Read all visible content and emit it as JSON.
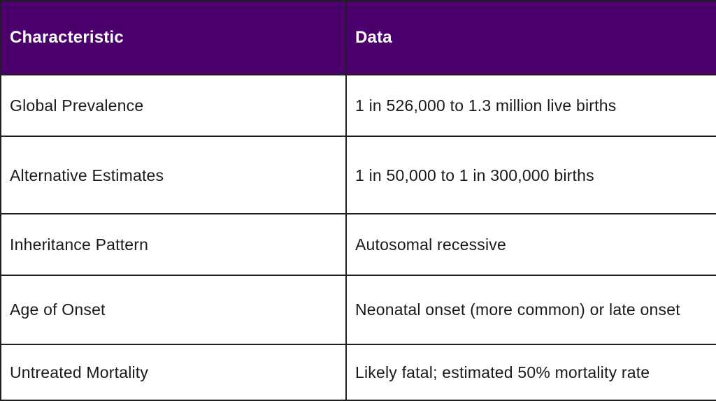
{
  "table": {
    "headers": [
      "Characteristic",
      "Data"
    ],
    "rows": [
      [
        "Global Prevalence",
        "1 in 526,000 to 1.3 million live births"
      ],
      [
        "Alternative Estimates",
        "1 in 50,000 to 1 in 300,000 births"
      ],
      [
        "Inheritance Pattern",
        "Autosomal recessive"
      ],
      [
        "Age of Onset",
        "Neonatal onset (more common) or late onset"
      ],
      [
        "Untreated Mortality",
        "Likely fatal; estimated 50% mortality rate"
      ]
    ]
  },
  "colors": {
    "header_background": "#4b006e",
    "header_text": "#ffffff",
    "border": "#1f1f1f",
    "body_text": "#1a1a1a"
  }
}
